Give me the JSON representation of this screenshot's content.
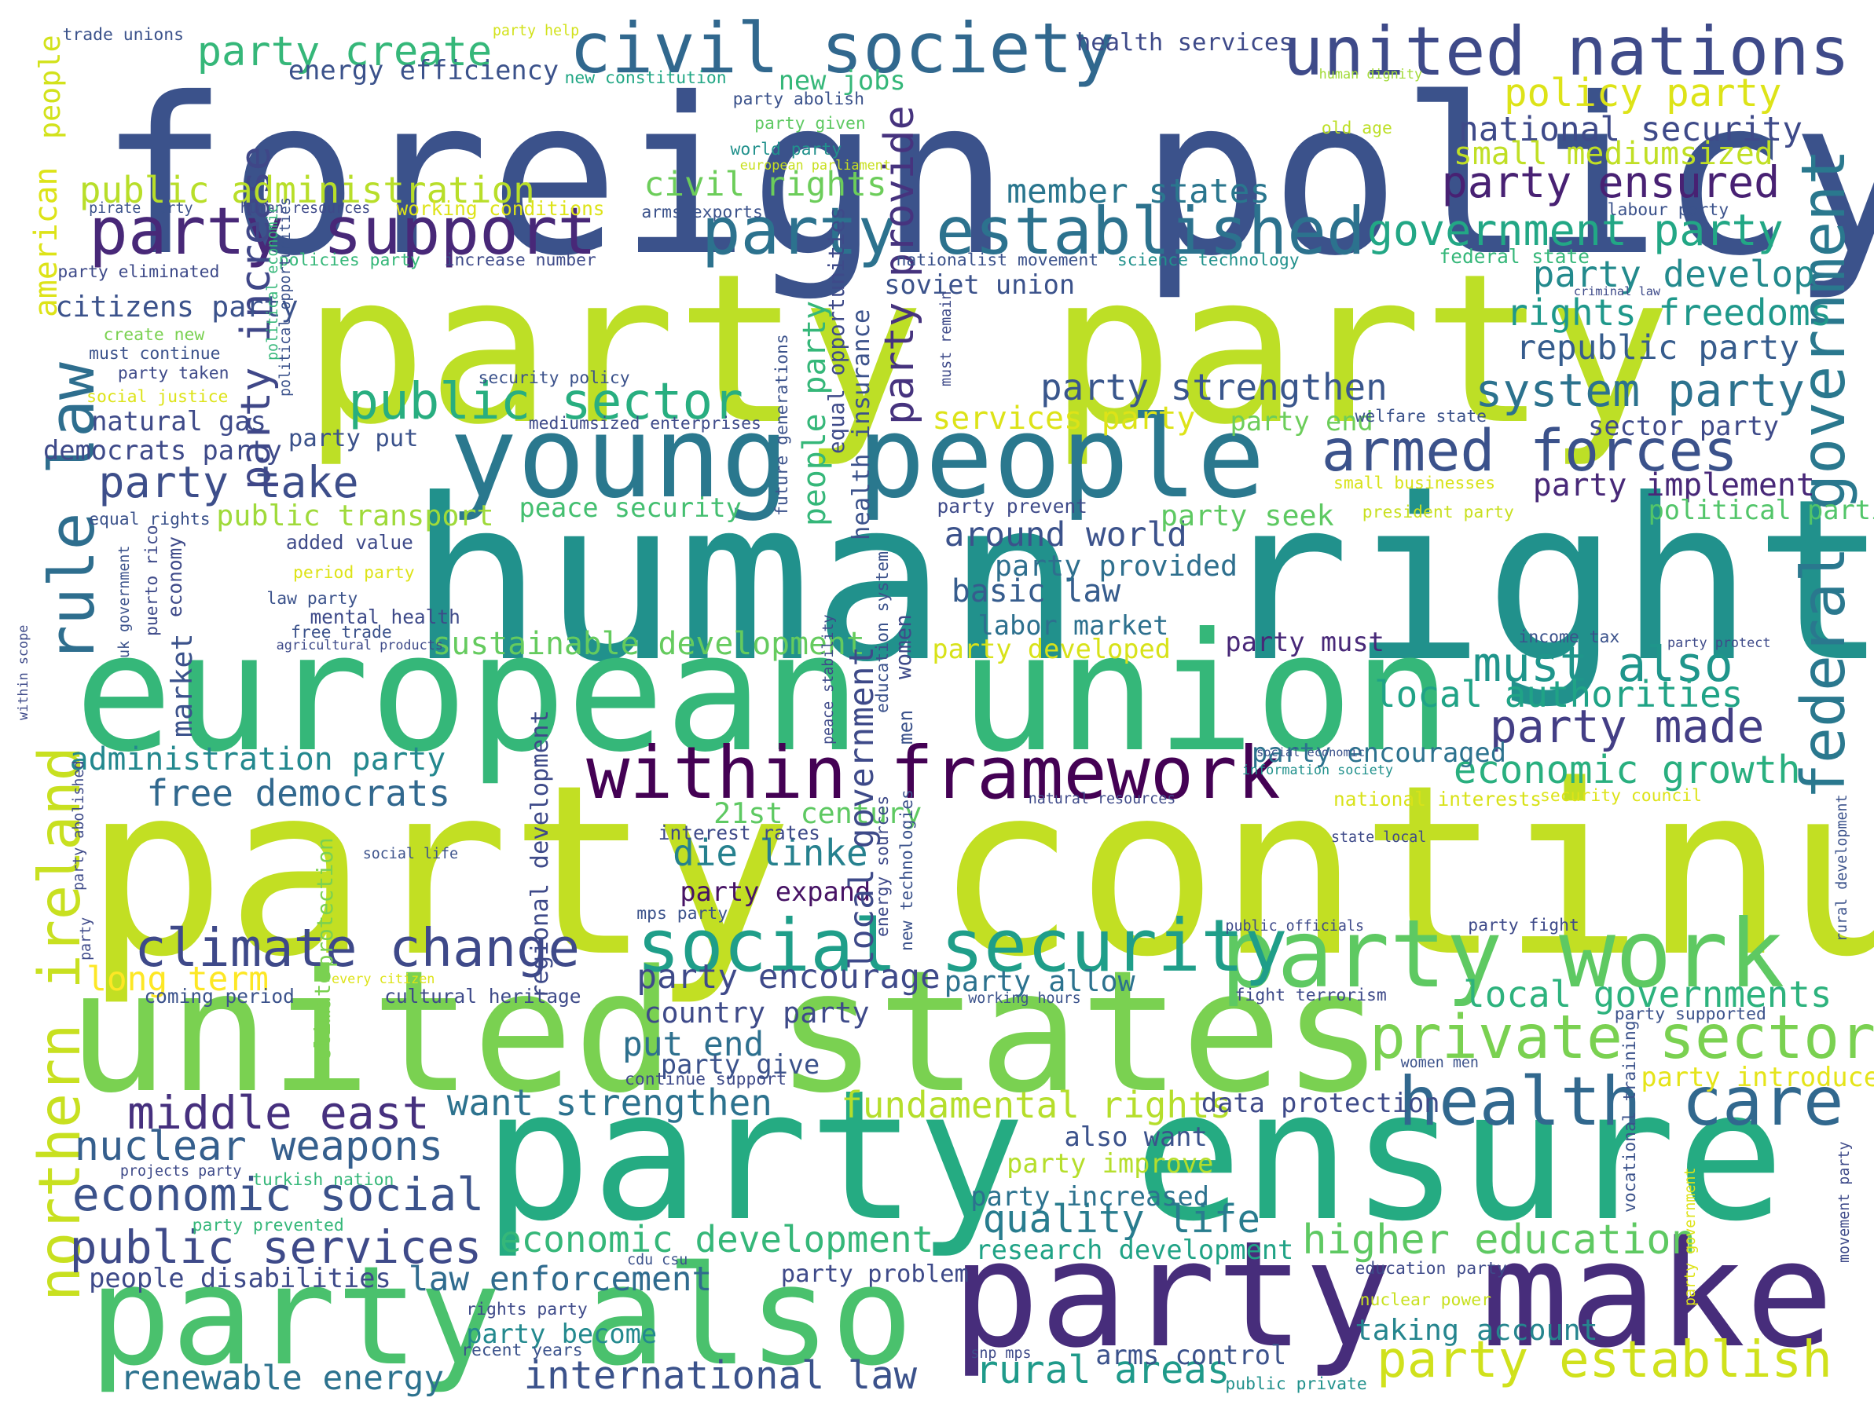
{
  "words": [
    {
      "text": "foreign policy",
      "color": "#3b528b"
    },
    {
      "text": "human rights",
      "color": "#21918c"
    },
    {
      "text": "party party",
      "color": "#bddf26"
    },
    {
      "text": "party continue",
      "color": "#c2df23"
    },
    {
      "text": "european union",
      "color": "#35b779"
    },
    {
      "text": "united states",
      "color": "#7ad151"
    },
    {
      "text": "party ensure",
      "color": "#25ab82"
    },
    {
      "text": "party also",
      "color": "#4ac16d"
    },
    {
      "text": "party make",
      "color": "#472d7b"
    },
    {
      "text": "young people",
      "color": "#2a788e"
    },
    {
      "text": "civil society",
      "color": "#31688e"
    },
    {
      "text": "united nations",
      "color": "#3e4a89"
    },
    {
      "text": "party support",
      "color": "#482878"
    },
    {
      "text": "party established",
      "color": "#2c728e"
    },
    {
      "text": "within framework",
      "color": "#440154"
    },
    {
      "text": "party work",
      "color": "#5ec962"
    },
    {
      "text": "social security",
      "color": "#1f9e89"
    },
    {
      "text": "climate change",
      "color": "#3e4989"
    },
    {
      "text": "health care",
      "color": "#31688e"
    },
    {
      "text": "private sector",
      "color": "#7ad151"
    },
    {
      "text": "northern ireland",
      "color": "#c8e020"
    },
    {
      "text": "rule law",
      "color": "#2e6e8e"
    },
    {
      "text": "federal government",
      "color": "#2a788e"
    },
    {
      "text": "armed forces",
      "color": "#3b528b"
    },
    {
      "text": "public sector",
      "color": "#28ae80"
    },
    {
      "text": "party take",
      "color": "#3d4e8a"
    },
    {
      "text": "party increase",
      "color": "#3f4788"
    },
    {
      "text": "party provide",
      "color": "#46337e"
    },
    {
      "text": "government party",
      "color": "#22a785"
    },
    {
      "text": "party ensured",
      "color": "#482173"
    },
    {
      "text": "system party",
      "color": "#2c728e"
    },
    {
      "text": "must also",
      "color": "#1f958b"
    },
    {
      "text": "party made",
      "color": "#433e85"
    },
    {
      "text": "middle east",
      "color": "#46307e"
    },
    {
      "text": "economic social",
      "color": "#3b528b"
    },
    {
      "text": "public services",
      "color": "#3e4a89"
    },
    {
      "text": "nuclear weapons",
      "color": "#355f8d"
    },
    {
      "text": "party establish",
      "color": "#d0e11c"
    },
    {
      "text": "higher education",
      "color": "#5ec962"
    },
    {
      "text": "economic development",
      "color": "#35b779"
    },
    {
      "text": "fundamental rights",
      "color": "#b5de2b"
    },
    {
      "text": "local governments",
      "color": "#2db27d"
    },
    {
      "text": "economic growth",
      "color": "#29af7f"
    },
    {
      "text": "local authorities",
      "color": "#20a386"
    },
    {
      "text": "party strengthen",
      "color": "#39568c"
    },
    {
      "text": "rights freedoms",
      "color": "#1f988b"
    },
    {
      "text": "republic party",
      "color": "#365c8d"
    },
    {
      "text": "party develop",
      "color": "#238a8d"
    },
    {
      "text": "national security",
      "color": "#3e4a89"
    },
    {
      "text": "policy party",
      "color": "#dde318"
    },
    {
      "text": "small mediumsized",
      "color": "#c0df25"
    },
    {
      "text": "member states",
      "color": "#2a768e"
    },
    {
      "text": "civil rights",
      "color": "#6ccd5a"
    },
    {
      "text": "party create",
      "color": "#35b779"
    },
    {
      "text": "energy efficiency",
      "color": "#3b528b"
    },
    {
      "text": "public administration",
      "color": "#b8de29"
    },
    {
      "text": "die linke",
      "color": "#26818e"
    },
    {
      "text": "21st century",
      "color": "#5ec962"
    },
    {
      "text": "sustainable development",
      "color": "#65cb5e"
    },
    {
      "text": "administration party",
      "color": "#23888e"
    },
    {
      "text": "free democrats",
      "color": "#31688e"
    },
    {
      "text": "around world",
      "color": "#3b528b"
    },
    {
      "text": "basic law",
      "color": "#365c8d"
    },
    {
      "text": "labor market",
      "color": "#2d708e"
    },
    {
      "text": "party provided",
      "color": "#2e6f8e"
    },
    {
      "text": "quality life",
      "color": "#287c8e"
    },
    {
      "text": "party encourage",
      "color": "#3e4989"
    },
    {
      "text": "want strengthen",
      "color": "#2c728e"
    },
    {
      "text": "law enforcement",
      "color": "#2f6b8e"
    },
    {
      "text": "international law",
      "color": "#3b528b"
    },
    {
      "text": "rural areas",
      "color": "#1f9a8a"
    },
    {
      "text": "renewable energy",
      "color": "#2c728e"
    },
    {
      "text": "people disabilities",
      "color": "#3e4a89"
    },
    {
      "text": "research development",
      "color": "#20a386"
    },
    {
      "text": "taking account",
      "color": "#25858e"
    },
    {
      "text": "arms control",
      "color": "#3b528b"
    },
    {
      "text": "party become",
      "color": "#23898e"
    },
    {
      "text": "put end",
      "color": "#2d708e"
    },
    {
      "text": "party give",
      "color": "#3b528b"
    },
    {
      "text": "country party",
      "color": "#3e4a89"
    },
    {
      "text": "party allow",
      "color": "#2c728e"
    },
    {
      "text": "long term",
      "color": "#fde725"
    },
    {
      "text": "party expand",
      "color": "#471365"
    },
    {
      "text": "party encouraged",
      "color": "#2c728e"
    },
    {
      "text": "party implement",
      "color": "#482878"
    },
    {
      "text": "political parties",
      "color": "#52c569"
    },
    {
      "text": "party must",
      "color": "#482878"
    },
    {
      "text": "party developed",
      "color": "#d8e219"
    },
    {
      "text": "also want",
      "color": "#3b528b"
    },
    {
      "text": "party improve",
      "color": "#b5de2b"
    },
    {
      "text": "party increased",
      "color": "#2c728e"
    },
    {
      "text": "party seek",
      "color": "#5ec962"
    },
    {
      "text": "services party",
      "color": "#dde318"
    },
    {
      "text": "party end",
      "color": "#6ccd5a"
    },
    {
      "text": "sector party",
      "color": "#3e4a89"
    },
    {
      "text": "peace security",
      "color": "#44bf70"
    },
    {
      "text": "public transport",
      "color": "#9fda3a"
    },
    {
      "text": "citizens party",
      "color": "#3b528b"
    },
    {
      "text": "natural gas",
      "color": "#3e4a89"
    },
    {
      "text": "democrats party",
      "color": "#3e4a89"
    },
    {
      "text": "party put",
      "color": "#3b528b"
    },
    {
      "text": "soviet union",
      "color": "#3b528b"
    },
    {
      "text": "new jobs",
      "color": "#35b779"
    },
    {
      "text": "data protection",
      "color": "#3e4a89"
    },
    {
      "text": "party introduce",
      "color": "#e5e419"
    },
    {
      "text": "american",
      "color": "#dde318"
    },
    {
      "text": "people",
      "color": "#d2e21b"
    },
    {
      "text": "health services",
      "color": "#3e4a89"
    },
    {
      "text": "trade unions",
      "color": "#3b528b"
    },
    {
      "text": "party help",
      "color": "#d2e21b"
    },
    {
      "text": "new constitution",
      "color": "#22a785"
    },
    {
      "text": "party abolish",
      "color": "#3b528b"
    },
    {
      "text": "party given",
      "color": "#5ec962"
    },
    {
      "text": "world party",
      "color": "#21918c"
    },
    {
      "text": "european parliament",
      "color": "#c8e020"
    },
    {
      "text": "human dignity",
      "color": "#a2da37"
    },
    {
      "text": "old age",
      "color": "#bddf26"
    },
    {
      "text": "labour party",
      "color": "#3b528b"
    },
    {
      "text": "federal state",
      "color": "#35b779"
    },
    {
      "text": "criminal law",
      "color": "#3e4a89"
    },
    {
      "text": "pirate party",
      "color": "#3b528b"
    },
    {
      "text": "human resources",
      "color": "#3e4a89"
    },
    {
      "text": "working conditions",
      "color": "#dde318"
    },
    {
      "text": "arms exports",
      "color": "#3b528b"
    },
    {
      "text": "policies party",
      "color": "#35b779"
    },
    {
      "text": "increase number",
      "color": "#3e4a89"
    },
    {
      "text": "nationalist movement",
      "color": "#3b528b"
    },
    {
      "text": "science technology",
      "color": "#21918c"
    },
    {
      "text": "party eliminated",
      "color": "#3e4a89"
    },
    {
      "text": "create new",
      "color": "#7ad151"
    },
    {
      "text": "must continue",
      "color": "#3b528b"
    },
    {
      "text": "party taken",
      "color": "#3e4a89"
    },
    {
      "text": "social justice",
      "color": "#dde318"
    },
    {
      "text": "security policy",
      "color": "#3b528b"
    },
    {
      "text": "mediumsized enterprises",
      "color": "#3e4a89"
    },
    {
      "text": "welfare state",
      "color": "#3b528b"
    },
    {
      "text": "small businesses",
      "color": "#d8e219"
    },
    {
      "text": "president party",
      "color": "#c8e020"
    },
    {
      "text": "party prevent",
      "color": "#3e4a89"
    },
    {
      "text": "equal rights",
      "color": "#3b528b"
    },
    {
      "text": "added value",
      "color": "#3e4a89"
    },
    {
      "text": "period party",
      "color": "#dde318"
    },
    {
      "text": "law party",
      "color": "#3b528b"
    },
    {
      "text": "mental health",
      "color": "#3e4a89"
    },
    {
      "text": "free trade",
      "color": "#3b528b"
    },
    {
      "text": "agricultural products",
      "color": "#3e4a89"
    },
    {
      "text": "income tax",
      "color": "#3b528b"
    },
    {
      "text": "party protect",
      "color": "#3e4a89"
    },
    {
      "text": "social economic",
      "color": "#3b528b"
    },
    {
      "text": "information society",
      "color": "#21918c"
    },
    {
      "text": "natural resources",
      "color": "#3e4a89"
    },
    {
      "text": "national interests",
      "color": "#d8e219"
    },
    {
      "text": "security council",
      "color": "#dde318"
    },
    {
      "text": "interest rates",
      "color": "#3e4a89"
    },
    {
      "text": "mps party",
      "color": "#3b528b"
    },
    {
      "text": "state local",
      "color": "#3e4a89"
    },
    {
      "text": "social life",
      "color": "#3b528b"
    },
    {
      "text": "public officials",
      "color": "#3e4a89"
    },
    {
      "text": "party fight",
      "color": "#3e4a89"
    },
    {
      "text": "every citizen",
      "color": "#dde318"
    },
    {
      "text": "coming period",
      "color": "#3b528b"
    },
    {
      "text": "cultural heritage",
      "color": "#3e4a89"
    },
    {
      "text": "working hours",
      "color": "#3b528b"
    },
    {
      "text": "fight terrorism",
      "color": "#3e4a89"
    },
    {
      "text": "party supported",
      "color": "#3b528b"
    },
    {
      "text": "continue support",
      "color": "#3e4a89"
    },
    {
      "text": "women men",
      "color": "#3b528b"
    },
    {
      "text": "turkish nation",
      "color": "#35b779"
    },
    {
      "text": "projects party",
      "color": "#3e4a89"
    },
    {
      "text": "party prevented",
      "color": "#35b779"
    },
    {
      "text": "cdu csu",
      "color": "#3b528b"
    },
    {
      "text": "education party",
      "color": "#3e4a89"
    },
    {
      "text": "party problem",
      "color": "#3e4a89"
    },
    {
      "text": "rights party",
      "color": "#3e4a89"
    },
    {
      "text": "nuclear power",
      "color": "#c8e020"
    },
    {
      "text": "recent years",
      "color": "#3b528b"
    },
    {
      "text": "snp mps",
      "color": "#3e4a89"
    },
    {
      "text": "public private",
      "color": "#21918c"
    },
    {
      "text": "within scope",
      "color": "#3e4a89"
    },
    {
      "text": "uk government",
      "color": "#3b528b"
    },
    {
      "text": "puerto rico",
      "color": "#3e4a89"
    },
    {
      "text": "economy",
      "color": "#3e4a89"
    },
    {
      "text": "market",
      "color": "#3b528b"
    },
    {
      "text": "party abolished",
      "color": "#3e4a89"
    },
    {
      "text": "party",
      "color": "#3e4a89"
    },
    {
      "text": "political economic",
      "color": "#35b779"
    },
    {
      "text": "political opportunities",
      "color": "#3b528b"
    },
    {
      "text": "protection",
      "color": "#7ad151"
    },
    {
      "text": "climate",
      "color": "#7ad151"
    },
    {
      "text": "regional development",
      "color": "#3e4a89"
    },
    {
      "text": "local government",
      "color": "#3e4a89"
    },
    {
      "text": "people party",
      "color": "#35b779"
    },
    {
      "text": "health insurance",
      "color": "#3b528b"
    },
    {
      "text": "equal opportunities",
      "color": "#3e4a89"
    },
    {
      "text": "future generations",
      "color": "#3b528b"
    },
    {
      "text": "peace stability",
      "color": "#3e4a89"
    },
    {
      "text": "education system",
      "color": "#3b528b"
    },
    {
      "text": "women",
      "color": "#3e4a89"
    },
    {
      "text": "men",
      "color": "#3b528b"
    },
    {
      "text": "energy sources",
      "color": "#3e4a89"
    },
    {
      "text": "new technologies",
      "color": "#3b528b"
    },
    {
      "text": "must remain",
      "color": "#3e4a89"
    },
    {
      "text": "vocational training",
      "color": "#3b528b"
    },
    {
      "text": "party government",
      "color": "#dde318"
    },
    {
      "text": "movement party",
      "color": "#3e4a89"
    },
    {
      "text": "rural development",
      "color": "#3b528b"
    }
  ]
}
